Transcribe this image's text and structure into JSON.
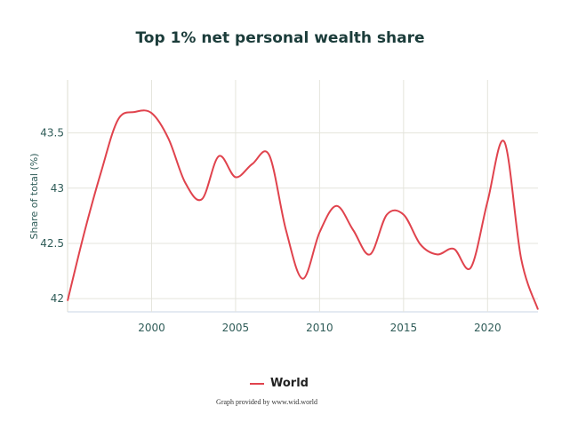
{
  "chart_data": {
    "type": "line",
    "title": "Top 1% net personal wealth share",
    "ylabel": "Share of total (%)",
    "xlabel": "",
    "xlim": [
      1995,
      2023
    ],
    "ylim": [
      41.88,
      43.98
    ],
    "x_ticks": [
      2000,
      2005,
      2010,
      2015,
      2020
    ],
    "y_ticks": [
      42,
      42.5,
      43,
      43.5
    ],
    "grid": true,
    "legend": "bottom-center",
    "series": [
      {
        "name": "World",
        "color": "#e0434d",
        "x": [
          1995,
          1996,
          1997,
          1998,
          1999,
          2000,
          2001,
          2002,
          2003,
          2004,
          2005,
          2006,
          2007,
          2008,
          2009,
          2010,
          2011,
          2012,
          2013,
          2014,
          2015,
          2016,
          2017,
          2018,
          2019,
          2020,
          2021,
          2022,
          2023
        ],
        "y": [
          41.98,
          42.6,
          43.15,
          43.62,
          43.69,
          43.68,
          43.45,
          43.05,
          42.9,
          43.29,
          43.1,
          43.22,
          43.3,
          42.62,
          42.18,
          42.6,
          42.84,
          42.62,
          42.4,
          42.76,
          42.76,
          42.49,
          42.4,
          42.45,
          42.28,
          42.88,
          43.42,
          42.36,
          41.9
        ]
      }
    ],
    "credit": "Graph provided by www.wid.world"
  }
}
